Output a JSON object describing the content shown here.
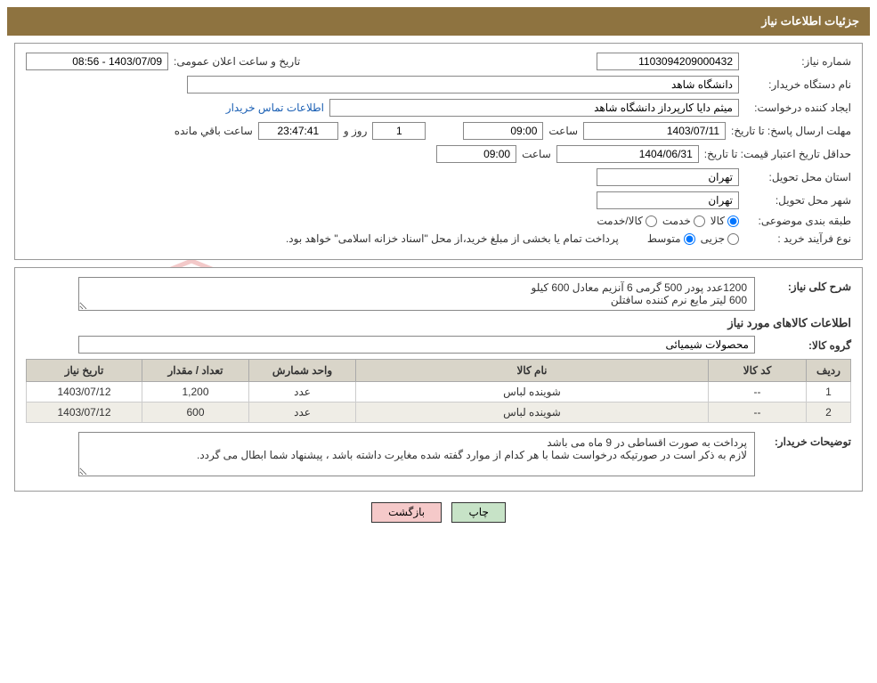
{
  "header": {
    "title": "جزئیات اطلاعات نیاز"
  },
  "fields": {
    "need_number_label": "شماره نیاز:",
    "need_number": "1103094209000432",
    "announce_date_label": "تاریخ و ساعت اعلان عمومی:",
    "announce_date": "1403/07/09 - 08:56",
    "buyer_org_label": "نام دستگاه خریدار:",
    "buyer_org": "دانشگاه شاهد",
    "requester_label": "ایجاد کننده درخواست:",
    "requester": "میثم دایا کارپرداز دانشگاه شاهد",
    "contact_link": "اطلاعات تماس خریدار",
    "deadline_label": "مهلت ارسال پاسخ:",
    "to_date_label": "تا تاریخ:",
    "deadline_date": "1403/07/11",
    "time_label": "ساعت",
    "deadline_time": "09:00",
    "days_label": "روز و",
    "days_value": "1",
    "countdown": "23:47:41",
    "remaining_label": "ساعت باقي مانده",
    "validity_label": "حداقل تاریخ اعتبار قیمت:",
    "validity_date": "1404/06/31",
    "validity_time": "09:00",
    "province_label": "استان محل تحویل:",
    "province": "تهران",
    "city_label": "شهر محل تحویل:",
    "city": "تهران",
    "category_label": "طبقه بندی موضوعی:",
    "cat_goods": "کالا",
    "cat_service": "خدمت",
    "cat_goods_service": "کالا/خدمت",
    "purchase_type_label": "نوع فرآیند خرید :",
    "pt_minor": "جزیی",
    "pt_medium": "متوسط",
    "payment_note": "پرداخت تمام یا بخشی از مبلغ خرید،از محل \"اسناد خزانه اسلامی\" خواهد بود."
  },
  "details": {
    "overall_label": "شرح کلی نیاز:",
    "overall_line1": "1200عدد پودر 500 گرمی 6 آنزیم معادل 600 کیلو",
    "overall_line2": "600 لیتر مایع نرم کننده سافتلن",
    "items_title": "اطلاعات کالاهای مورد نیاز",
    "group_label": "گروه کالا:",
    "group_value": "محصولات شیمیائی",
    "buyer_notes_label": "توضیحات خریدار:",
    "buyer_notes_line1": "پرداخت به صورت اقساطی در 9 ماه می باشد",
    "buyer_notes_line2": "لازم به ذکر است در صورتیکه درخواست شما با هر کدام از موارد گفته شده مغایرت داشته باشد ، پیشنهاد شما ابطال می گردد."
  },
  "table": {
    "columns": [
      "ردیف",
      "کد کالا",
      "نام کالا",
      "واحد شمارش",
      "تعداد / مقدار",
      "تاریخ نیاز"
    ],
    "rows": [
      [
        "1",
        "--",
        "شوینده لباس",
        "عدد",
        "1,200",
        "1403/07/12"
      ],
      [
        "2",
        "--",
        "شوینده لباس",
        "عدد",
        "600",
        "1403/07/12"
      ]
    ],
    "col_widths": [
      "50px",
      "110px",
      "auto",
      "120px",
      "120px",
      "130px"
    ]
  },
  "buttons": {
    "print": "چاپ",
    "back": "بازگشت"
  },
  "watermark": {
    "text": "AriaTender.net"
  },
  "colors": {
    "header_bg": "#8e7340",
    "th_bg": "#d9d5c9",
    "alt_row": "#efede6",
    "btn_print": "#c7e3c7",
    "btn_back": "#f5c9c9",
    "shield": "#d94c4c"
  }
}
